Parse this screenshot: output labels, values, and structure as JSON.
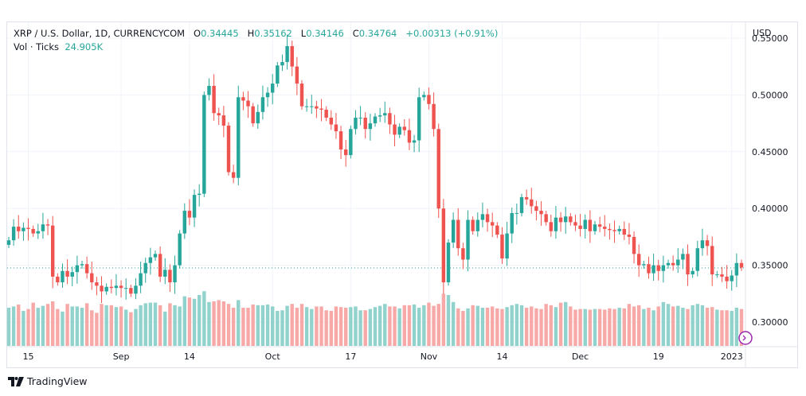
{
  "header": {
    "symbol": "XRP / U.S. Dollar, 1D, CURRENCYCOM",
    "open_label": "O",
    "open": "0.34445",
    "high_label": "H",
    "high": "0.35162",
    "low_label": "L",
    "low": "0.34146",
    "close_label": "C",
    "close": "0.34764",
    "change": "+0.00313 (+0.91%)",
    "volume_label": "Vol · Ticks",
    "volume": "24.905K"
  },
  "price_axis": {
    "currency": "USD"
  },
  "brand": {
    "name": "TradingView"
  },
  "colors": {
    "up": "#26a69a",
    "down": "#ef5350",
    "up_vol": "#92d2cc",
    "down_vol": "#f7a9a7",
    "grid": "#f0f3fa",
    "price_line": "#26a69a"
  },
  "chart_data": {
    "type": "candlestick",
    "title": "XRP / U.S. Dollar, 1D, CURRENCYCOM",
    "ylabel": "USD",
    "ylim": [
      0.279,
      0.564
    ],
    "y_ticks": [
      "0.55000",
      "0.50000",
      "0.45000",
      "0.40000",
      "0.35000",
      "0.30000"
    ],
    "y_tick_values": [
      0.55,
      0.5,
      0.45,
      0.4,
      0.35,
      0.3
    ],
    "x_ticks": [
      "15",
      "Sep",
      "14",
      "Oct",
      "17",
      "Nov",
      "14",
      "Dec",
      "19",
      "2023"
    ],
    "x_tick_index": [
      4,
      23,
      37,
      54,
      70,
      86,
      101,
      117,
      133,
      148
    ],
    "last_price": 0.34764,
    "closes": [
      0.372,
      0.384,
      0.38,
      0.383,
      0.382,
      0.378,
      0.38,
      0.386,
      0.385,
      0.34,
      0.335,
      0.345,
      0.34,
      0.344,
      0.35,
      0.351,
      0.343,
      0.335,
      0.332,
      0.327,
      0.331,
      0.33,
      0.332,
      0.33,
      0.33,
      0.325,
      0.332,
      0.343,
      0.352,
      0.357,
      0.36,
      0.34,
      0.346,
      0.335,
      0.35,
      0.378,
      0.398,
      0.392,
      0.412,
      0.413,
      0.5,
      0.508,
      0.484,
      0.482,
      0.473,
      0.432,
      0.427,
      0.498,
      0.495,
      0.49,
      0.475,
      0.485,
      0.498,
      0.502,
      0.51,
      0.526,
      0.529,
      0.543,
      0.525,
      0.51,
      0.49,
      0.49,
      0.49,
      0.488,
      0.487,
      0.48,
      0.474,
      0.468,
      0.452,
      0.447,
      0.47,
      0.48,
      0.48,
      0.47,
      0.475,
      0.481,
      0.482,
      0.484,
      0.474,
      0.465,
      0.472,
      0.469,
      0.458,
      0.46,
      0.498,
      0.5,
      0.492,
      0.47,
      0.4,
      0.335,
      0.37,
      0.39,
      0.365,
      0.355,
      0.39,
      0.38,
      0.39,
      0.395,
      0.388,
      0.385,
      0.377,
      0.356,
      0.378,
      0.396,
      0.396,
      0.41,
      0.408,
      0.402,
      0.398,
      0.395,
      0.388,
      0.38,
      0.392,
      0.388,
      0.393,
      0.388,
      0.385,
      0.382,
      0.39,
      0.38,
      0.386,
      0.384,
      0.382,
      0.381,
      0.38,
      0.382,
      0.377,
      0.375,
      0.36,
      0.35,
      0.351,
      0.343,
      0.35,
      0.345,
      0.35,
      0.352,
      0.35,
      0.355,
      0.36,
      0.342,
      0.345,
      0.365,
      0.372,
      0.367,
      0.342,
      0.342,
      0.34,
      0.336,
      0.341,
      0.352,
      0.348
    ],
    "volumes": [
      0.6,
      0.62,
      0.65,
      0.55,
      0.58,
      0.68,
      0.6,
      0.63,
      0.66,
      0.7,
      0.58,
      0.54,
      0.66,
      0.62,
      0.62,
      0.6,
      0.67,
      0.56,
      0.52,
      0.66,
      0.64,
      0.64,
      0.61,
      0.62,
      0.57,
      0.53,
      0.58,
      0.64,
      0.67,
      0.68,
      0.68,
      0.64,
      0.54,
      0.67,
      0.64,
      0.62,
      0.78,
      0.76,
      0.74,
      0.8,
      0.86,
      0.69,
      0.7,
      0.72,
      0.7,
      0.66,
      0.6,
      0.72,
      0.6,
      0.6,
      0.65,
      0.64,
      0.64,
      0.65,
      0.62,
      0.55,
      0.56,
      0.63,
      0.66,
      0.6,
      0.66,
      0.61,
      0.58,
      0.62,
      0.62,
      0.56,
      0.55,
      0.62,
      0.61,
      0.6,
      0.61,
      0.62,
      0.56,
      0.56,
      0.58,
      0.61,
      0.63,
      0.66,
      0.62,
      0.62,
      0.59,
      0.64,
      0.64,
      0.65,
      0.6,
      0.64,
      0.68,
      0.63,
      0.66,
      0.82,
      0.8,
      0.69,
      0.59,
      0.55,
      0.59,
      0.64,
      0.63,
      0.6,
      0.6,
      0.62,
      0.59,
      0.58,
      0.61,
      0.64,
      0.66,
      0.64,
      0.6,
      0.62,
      0.59,
      0.58,
      0.66,
      0.64,
      0.61,
      0.68,
      0.69,
      0.62,
      0.57,
      0.58,
      0.58,
      0.57,
      0.58,
      0.58,
      0.57,
      0.59,
      0.58,
      0.6,
      0.59,
      0.66,
      0.62,
      0.64,
      0.58,
      0.6,
      0.56,
      0.62,
      0.69,
      0.66,
      0.62,
      0.63,
      0.6,
      0.58,
      0.64,
      0.66,
      0.64,
      0.6,
      0.61,
      0.57,
      0.56,
      0.56,
      0.55,
      0.6,
      0.58
    ]
  }
}
